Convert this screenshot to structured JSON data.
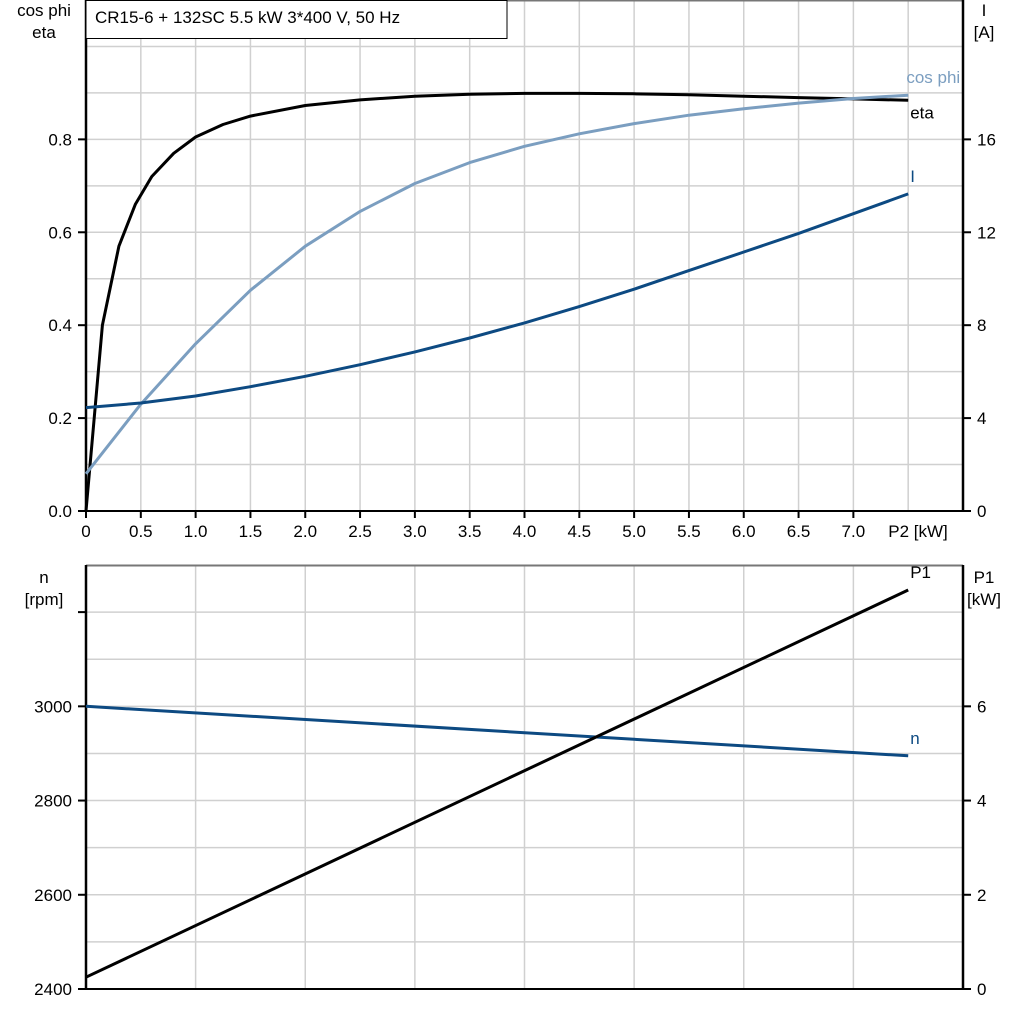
{
  "colors": {
    "eta": "#000000",
    "cos_phi": "#7b9ec0",
    "I": "#0d4a82",
    "n": "#0d4a82",
    "P1": "#000000",
    "grid": "#d0d0d0"
  },
  "chart_data": [
    {
      "type": "line",
      "title": "CR15-6 + 132SC   5.5 kW   3*400 V, 50 Hz",
      "xlabel": "P2 [kW]",
      "x_tick_labels": [
        "0",
        "0.5",
        "1.0",
        "1.5",
        "2.0",
        "2.5",
        "3.0",
        "3.5",
        "4.0",
        "4.5",
        "5.0",
        "5.5",
        "6.0",
        "6.5",
        "7.0"
      ],
      "x_ticks": [
        0,
        0.5,
        1,
        1.5,
        2,
        2.5,
        3,
        3.5,
        4,
        4.5,
        5,
        5.5,
        6,
        6.5,
        7
      ],
      "xlim": [
        0,
        8
      ],
      "ylabel_left": [
        "cos phi",
        "eta"
      ],
      "ylim_left": [
        0,
        1.1
      ],
      "y_ticks_left": [
        0,
        0.2,
        0.4,
        0.6,
        0.8
      ],
      "y_tick_labels_left": [
        "0.0",
        "0.2",
        "0.4",
        "0.6",
        "0.8"
      ],
      "ylabel_right": [
        "I",
        "[A]"
      ],
      "ylim_right": [
        0,
        22
      ],
      "y_ticks_right": [
        0,
        4,
        8,
        12,
        16
      ],
      "y_tick_labels_right": [
        "0",
        "4",
        "8",
        "12",
        "16"
      ],
      "grid": true,
      "series": [
        {
          "name": "eta",
          "axis": "left",
          "x": [
            0,
            0.15,
            0.3,
            0.45,
            0.6,
            0.8,
            1.0,
            1.25,
            1.5,
            2,
            2.5,
            3,
            3.5,
            4,
            4.5,
            5,
            5.5,
            6,
            6.5,
            7,
            7.5
          ],
          "y": [
            0,
            0.4,
            0.57,
            0.66,
            0.72,
            0.77,
            0.805,
            0.832,
            0.85,
            0.873,
            0.885,
            0.893,
            0.897,
            0.899,
            0.899,
            0.898,
            0.896,
            0.893,
            0.89,
            0.887,
            0.884
          ]
        },
        {
          "name": "cos phi",
          "axis": "left",
          "x": [
            0,
            0.5,
            1,
            1.5,
            2,
            2.5,
            3,
            3.5,
            4,
            4.5,
            5,
            5.5,
            6,
            6.5,
            7,
            7.5
          ],
          "y": [
            0.08,
            0.23,
            0.36,
            0.475,
            0.57,
            0.645,
            0.705,
            0.75,
            0.785,
            0.812,
            0.834,
            0.852,
            0.866,
            0.878,
            0.888,
            0.895
          ]
        },
        {
          "name": "I",
          "axis": "right",
          "x": [
            0,
            0.5,
            1,
            1.5,
            2,
            2.5,
            3,
            3.5,
            4,
            4.5,
            5,
            5.5,
            6,
            6.5,
            7,
            7.5
          ],
          "y": [
            4.45,
            4.65,
            4.95,
            5.35,
            5.8,
            6.3,
            6.85,
            7.45,
            8.1,
            8.8,
            9.55,
            10.35,
            11.15,
            11.95,
            12.8,
            13.65
          ]
        }
      ]
    },
    {
      "type": "line",
      "xlim": [
        0,
        8
      ],
      "x_ticks": [
        1,
        2,
        3,
        4,
        5,
        6,
        7
      ],
      "ylabel_left": [
        "n",
        "[rpm]"
      ],
      "ylim_left": [
        2400,
        3300
      ],
      "y_ticks_left": [
        2400,
        2600,
        2800,
        3000,
        3200
      ],
      "y_tick_labels_left": [
        "2400",
        "2600",
        "2800",
        "3000",
        ""
      ],
      "ylabel_right": [
        "P1",
        "[kW]"
      ],
      "ylim_right": [
        0,
        9
      ],
      "y_ticks_right": [
        0,
        2,
        4,
        6
      ],
      "y_tick_labels_right": [
        "0",
        "2",
        "4",
        "6"
      ],
      "grid": true,
      "series": [
        {
          "name": "n",
          "axis": "left",
          "x": [
            0,
            7.5
          ],
          "y": [
            3000,
            2895
          ]
        },
        {
          "name": "P1",
          "axis": "right",
          "x": [
            0,
            7.5
          ],
          "y": [
            0.25,
            8.47
          ]
        }
      ]
    }
  ]
}
